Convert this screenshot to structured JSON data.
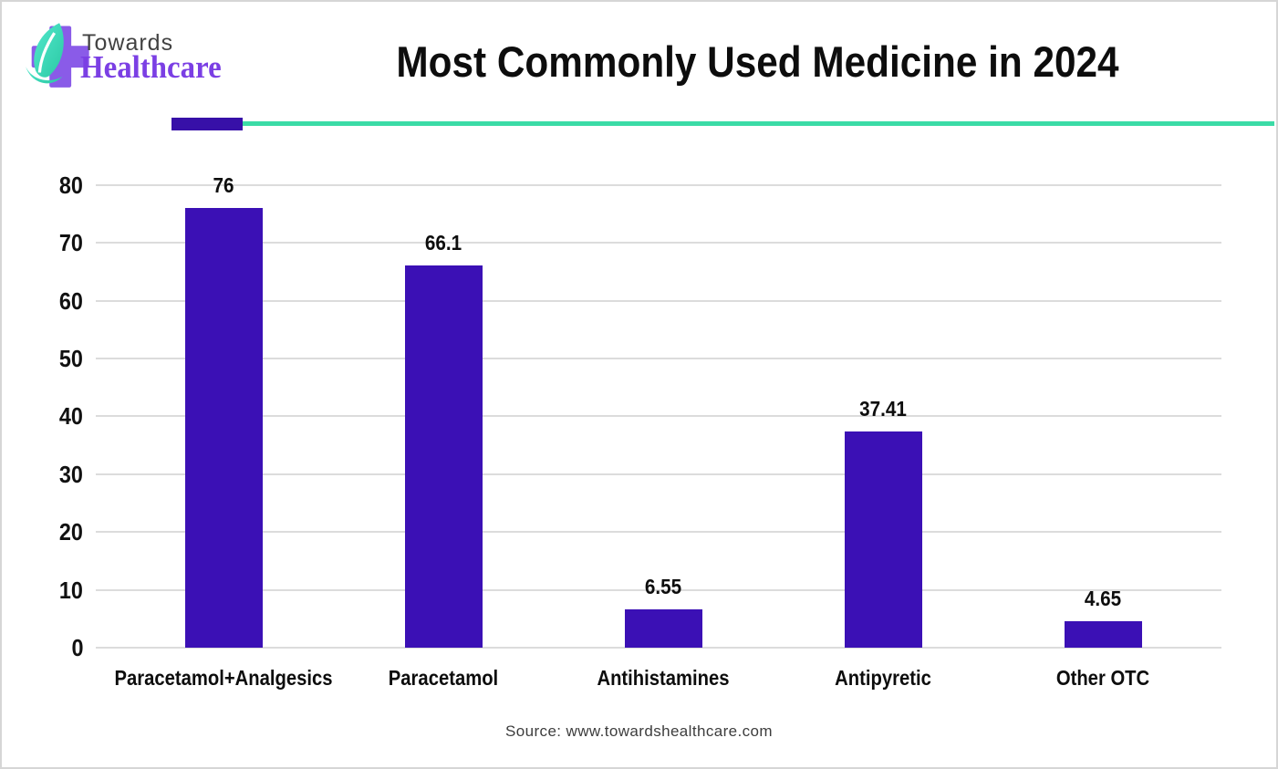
{
  "header": {
    "brand_top": "Towards",
    "brand_bottom": "Healthcare",
    "title": "Most Commonly Used Medicine in 2024"
  },
  "footer": {
    "source": "Source: www.towardshealthcare.com"
  },
  "colors": {
    "bar": "#3b10b5",
    "divider_purple": "#3710a8",
    "divider_teal": "#3bdba6",
    "brand_purple": "#7b3fe4",
    "logo_cross": "#8a5be8",
    "logo_leaf_light": "#52e8cc",
    "logo_leaf_dark": "#2bc9a4",
    "gridline": "#dcdcdc",
    "text": "#0d0d0d"
  },
  "chart_data": {
    "type": "bar",
    "title": "Most Commonly Used Medicine in 2024",
    "categories": [
      "Paracetamol+Analgesics",
      "Paracetamol",
      "Antihistamines",
      "Antipyretic",
      "Other OTC"
    ],
    "values": [
      76,
      66.1,
      6.55,
      37.41,
      4.65
    ],
    "value_labels": [
      "76",
      "66.1",
      "6.55",
      "37.41",
      "4.65"
    ],
    "xlabel": "",
    "ylabel": "",
    "ylim": [
      0,
      80
    ],
    "yticks": [
      0,
      10,
      20,
      30,
      40,
      50,
      60,
      70,
      80
    ],
    "grid": true,
    "legend": false,
    "bar_color": "#3b10b5"
  }
}
